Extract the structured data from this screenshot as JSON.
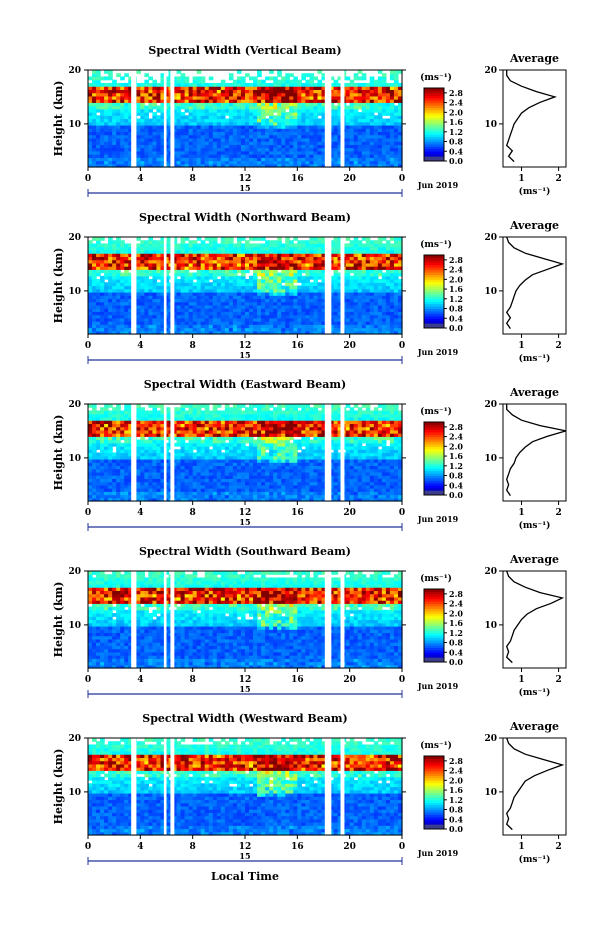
{
  "figure": {
    "xlabel": "Local Time",
    "ylabel": "Height (km)",
    "date_label": "15",
    "month_label": "Jun 2019",
    "avg_title": "Average",
    "unit_label": "(ms⁻¹)",
    "avg_xlabel": "(ms⁻¹)"
  },
  "chart_data": [
    {
      "type": "heatmap",
      "title": "Spectral Width (Vertical Beam)",
      "xlabel": "",
      "ylabel": "Height (km)",
      "xlim": [
        0,
        24
      ],
      "ylim": [
        2,
        20
      ],
      "xticks": [
        "0",
        "4",
        "8",
        "12",
        "16",
        "20",
        "0"
      ],
      "yticks": [
        "10",
        "20"
      ],
      "colorbar": {
        "min": 0.0,
        "max": 3.0,
        "ticks": [
          "0.0",
          "0.4",
          "0.8",
          "1.2",
          "1.6",
          "2.0",
          "2.4",
          "2.8"
        ]
      },
      "data_gaps_hours": [
        [
          3.3,
          3.7
        ],
        [
          5.8,
          6.0
        ],
        [
          6.3,
          6.6
        ],
        [
          18.1,
          18.6
        ],
        [
          19.3,
          19.6
        ]
      ],
      "average_profile": {
        "xlabel": "(ms⁻¹)",
        "xticks": [
          "1",
          "2"
        ],
        "xlim": [
          0.5,
          2.2
        ],
        "ylim": [
          2,
          20
        ],
        "height_km": [
          3,
          4,
          5,
          6,
          7,
          8,
          9,
          10,
          11,
          12,
          13,
          14,
          15,
          16,
          17,
          18,
          19,
          20
        ],
        "width_ms": [
          0.8,
          0.65,
          0.75,
          0.6,
          0.65,
          0.7,
          0.75,
          0.8,
          0.9,
          1.0,
          1.2,
          1.5,
          1.9,
          1.4,
          1.0,
          0.7,
          0.6,
          0.6
        ]
      }
    },
    {
      "type": "heatmap",
      "title": "Spectral Width (Northward Beam)",
      "xlabel": "",
      "ylabel": "Height (km)",
      "xlim": [
        0,
        24
      ],
      "ylim": [
        2,
        20
      ],
      "xticks": [
        "0",
        "4",
        "8",
        "12",
        "16",
        "20",
        "0"
      ],
      "yticks": [
        "10",
        "20"
      ],
      "colorbar": {
        "min": 0.0,
        "max": 3.0,
        "ticks": [
          "0.0",
          "0.4",
          "0.8",
          "1.2",
          "1.6",
          "2.0",
          "2.4",
          "2.8"
        ]
      },
      "data_gaps_hours": [
        [
          3.3,
          3.7
        ],
        [
          5.8,
          6.0
        ],
        [
          6.3,
          6.6
        ],
        [
          18.1,
          18.6
        ],
        [
          19.3,
          19.6
        ]
      ],
      "average_profile": {
        "xlabel": "(ms⁻¹)",
        "xticks": [
          "1",
          "2"
        ],
        "xlim": [
          0.5,
          2.2
        ],
        "ylim": [
          2,
          20
        ],
        "height_km": [
          3,
          4,
          5,
          6,
          7,
          8,
          9,
          10,
          11,
          12,
          13,
          14,
          15,
          16,
          17,
          18,
          19,
          20
        ],
        "width_ms": [
          0.7,
          0.6,
          0.7,
          0.6,
          0.7,
          0.75,
          0.8,
          0.85,
          0.95,
          1.1,
          1.3,
          1.7,
          2.1,
          1.6,
          1.1,
          0.8,
          0.65,
          0.6
        ]
      }
    },
    {
      "type": "heatmap",
      "title": "Spectral Width (Eastward Beam)",
      "xlabel": "",
      "ylabel": "Height (km)",
      "xlim": [
        0,
        24
      ],
      "ylim": [
        2,
        20
      ],
      "xticks": [
        "0",
        "4",
        "8",
        "12",
        "16",
        "20",
        "0"
      ],
      "yticks": [
        "10",
        "20"
      ],
      "colorbar": {
        "min": 0.0,
        "max": 3.0,
        "ticks": [
          "0.0",
          "0.4",
          "0.8",
          "1.2",
          "1.6",
          "2.0",
          "2.4",
          "2.8"
        ]
      },
      "data_gaps_hours": [
        [
          3.3,
          3.7
        ],
        [
          5.8,
          6.0
        ],
        [
          6.3,
          6.6
        ],
        [
          18.1,
          18.6
        ],
        [
          19.3,
          19.6
        ]
      ],
      "average_profile": {
        "xlabel": "(ms⁻¹)",
        "xticks": [
          "1",
          "2"
        ],
        "xlim": [
          0.5,
          2.2
        ],
        "ylim": [
          2,
          20
        ],
        "height_km": [
          3,
          4,
          5,
          6,
          7,
          8,
          9,
          10,
          11,
          12,
          13,
          14,
          15,
          16,
          17,
          18,
          19,
          20
        ],
        "width_ms": [
          0.7,
          0.6,
          0.65,
          0.6,
          0.65,
          0.7,
          0.8,
          0.85,
          0.95,
          1.1,
          1.3,
          1.7,
          2.2,
          1.5,
          1.0,
          0.75,
          0.6,
          0.6
        ]
      }
    },
    {
      "type": "heatmap",
      "title": "Spectral Width (Southward Beam)",
      "xlabel": "",
      "ylabel": "Height (km)",
      "xlim": [
        0,
        24
      ],
      "ylim": [
        2,
        20
      ],
      "xticks": [
        "0",
        "4",
        "8",
        "12",
        "16",
        "20",
        "0"
      ],
      "yticks": [
        "10",
        "20"
      ],
      "colorbar": {
        "min": 0.0,
        "max": 3.0,
        "ticks": [
          "0.0",
          "0.4",
          "0.8",
          "1.2",
          "1.6",
          "2.0",
          "2.4",
          "2.8"
        ]
      },
      "data_gaps_hours": [
        [
          3.3,
          3.7
        ],
        [
          5.8,
          6.0
        ],
        [
          6.3,
          6.6
        ],
        [
          18.1,
          18.6
        ],
        [
          19.3,
          19.6
        ]
      ],
      "average_profile": {
        "xlabel": "(ms⁻¹)",
        "xticks": [
          "1",
          "2"
        ],
        "xlim": [
          0.5,
          2.2
        ],
        "ylim": [
          2,
          20
        ],
        "height_km": [
          3,
          4,
          5,
          6,
          7,
          8,
          9,
          10,
          11,
          12,
          13,
          14,
          15,
          16,
          17,
          18,
          19,
          20
        ],
        "width_ms": [
          0.75,
          0.6,
          0.65,
          0.6,
          0.7,
          0.75,
          0.8,
          0.9,
          1.0,
          1.15,
          1.4,
          1.8,
          2.1,
          1.5,
          1.1,
          0.8,
          0.65,
          0.6
        ]
      }
    },
    {
      "type": "heatmap",
      "title": "Spectral Width (Westward Beam)",
      "xlabel": "Local Time",
      "ylabel": "Height (km)",
      "xlim": [
        0,
        24
      ],
      "ylim": [
        2,
        20
      ],
      "xticks": [
        "0",
        "4",
        "8",
        "12",
        "16",
        "20",
        "0"
      ],
      "yticks": [
        "10",
        "20"
      ],
      "colorbar": {
        "min": 0.0,
        "max": 3.0,
        "ticks": [
          "0.0",
          "0.4",
          "0.8",
          "1.2",
          "1.6",
          "2.0",
          "2.4",
          "2.8"
        ]
      },
      "data_gaps_hours": [
        [
          3.3,
          3.7
        ],
        [
          5.8,
          6.0
        ],
        [
          6.3,
          6.6
        ],
        [
          18.1,
          18.6
        ],
        [
          19.3,
          19.6
        ]
      ],
      "average_profile": {
        "xlabel": "(ms⁻¹)",
        "xticks": [
          "1",
          "2"
        ],
        "xlim": [
          0.5,
          2.2
        ],
        "ylim": [
          2,
          20
        ],
        "height_km": [
          3,
          4,
          5,
          6,
          7,
          8,
          9,
          10,
          11,
          12,
          13,
          14,
          15,
          16,
          17,
          18,
          19,
          20
        ],
        "width_ms": [
          0.75,
          0.6,
          0.65,
          0.6,
          0.7,
          0.75,
          0.8,
          0.9,
          1.0,
          1.1,
          1.35,
          1.7,
          2.1,
          1.6,
          1.1,
          0.8,
          0.65,
          0.6
        ]
      }
    }
  ]
}
